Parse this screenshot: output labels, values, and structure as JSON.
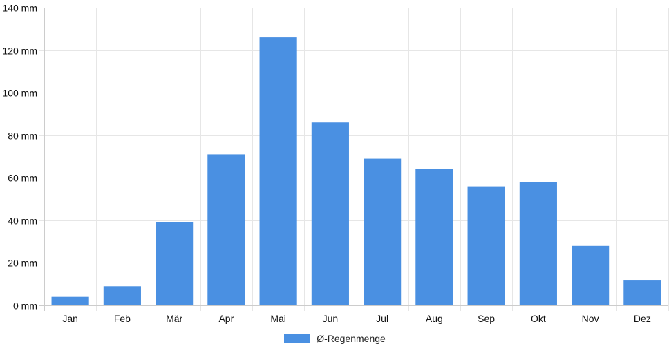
{
  "chart_data": {
    "type": "bar",
    "categories": [
      "Jan",
      "Feb",
      "Mär",
      "Apr",
      "Mai",
      "Jun",
      "Jul",
      "Aug",
      "Sep",
      "Okt",
      "Nov",
      "Dez"
    ],
    "series": [
      {
        "name": "Ø-Regenmenge",
        "values": [
          4,
          9,
          39,
          71,
          126,
          86,
          69,
          64,
          56,
          58,
          28,
          12
        ],
        "color": "#4a90e2"
      }
    ],
    "y_ticks": [
      "0 mm",
      "20 mm",
      "40 mm",
      "60 mm",
      "80 mm",
      "100 mm",
      "120 mm",
      "140 mm"
    ],
    "ylim": [
      0,
      140
    ],
    "y_step": 20,
    "grid": true,
    "legend_position": "bottom",
    "grid_color": "#e6e6e6",
    "axis_color": "#cccccc"
  }
}
